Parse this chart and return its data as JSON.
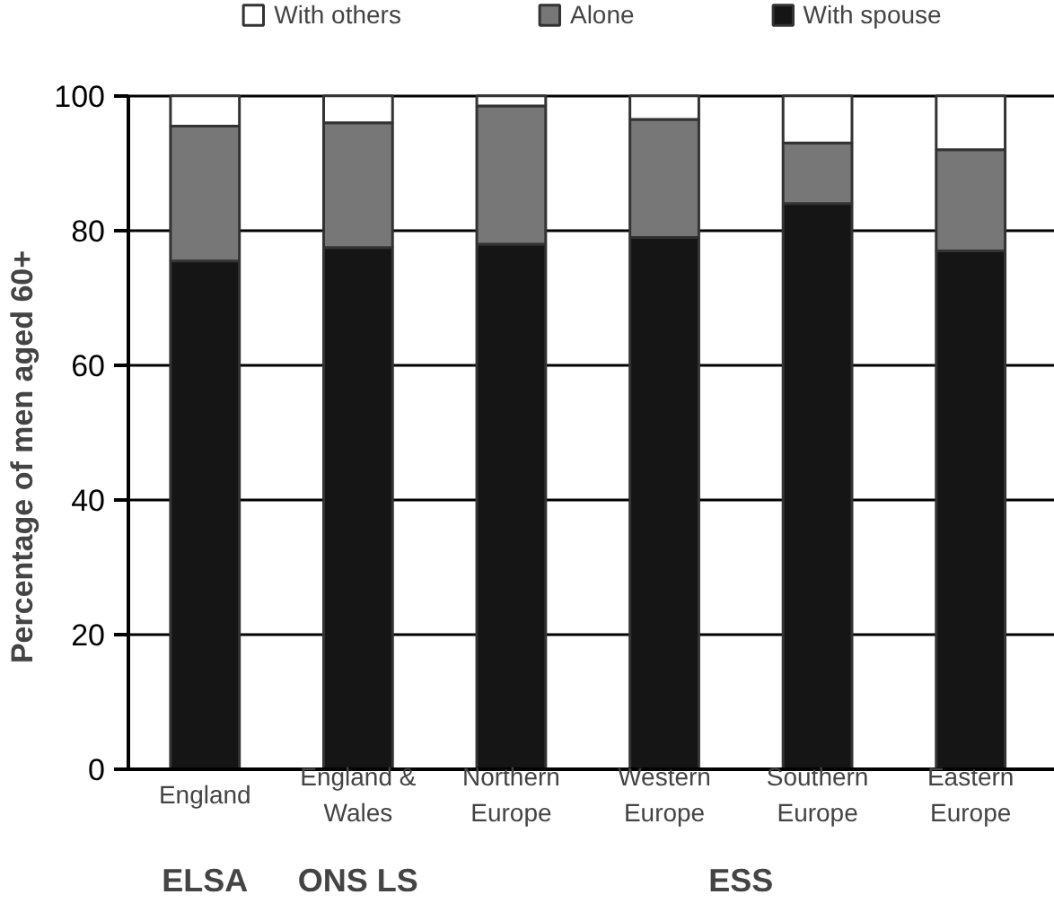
{
  "chart_data": {
    "type": "bar",
    "stacked": true,
    "ylabel": "Percentage of men aged 60+",
    "categories": [
      "England",
      "England & Wales",
      "Northern Europe",
      "Western Europe",
      "Southern Europe",
      "Eastern Europe"
    ],
    "series": [
      {
        "name": "With spouse",
        "color": "#151515",
        "values": [
          75.5,
          77.5,
          78,
          79,
          84,
          77
        ]
      },
      {
        "name": "Alone",
        "color": "#777777",
        "values": [
          20,
          18.5,
          20.5,
          17.5,
          9,
          15
        ]
      },
      {
        "name": "With others",
        "color": "#ffffff",
        "values": [
          4.5,
          4,
          1.5,
          3.5,
          7,
          8
        ]
      }
    ],
    "ylim": [
      0,
      100
    ],
    "yticks": [
      0,
      20,
      40,
      60,
      80,
      100
    ],
    "grid": "y",
    "legend": "top",
    "annotations": [
      "ELSA",
      "ONS LS",
      "ESS"
    ]
  }
}
